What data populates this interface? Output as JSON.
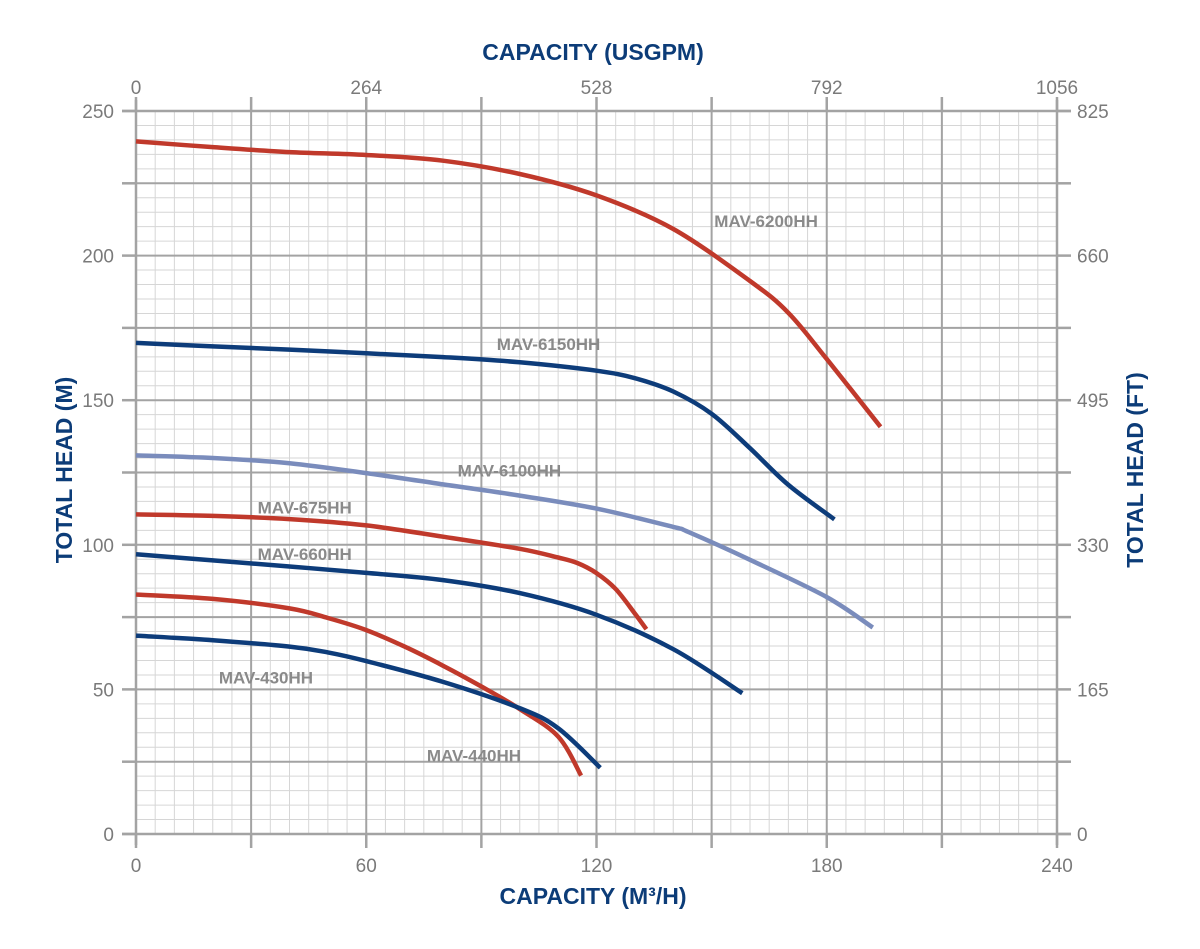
{
  "chart_data": {
    "type": "line",
    "title": "",
    "xlabel_bottom": "CAPACITY (M³/H)",
    "xlabel_top": "CAPACITY (USGPM)",
    "ylabel_left": "TOTAL HEAD (M)",
    "ylabel_right": "TOTAL HEAD (FT)",
    "xlim": [
      0,
      240
    ],
    "ylim": [
      0,
      250
    ],
    "x_ticks_bottom": [
      "0",
      "60",
      "120",
      "180",
      "240"
    ],
    "x_ticks_top": [
      "0",
      "264",
      "528",
      "792",
      "1056"
    ],
    "y_ticks_left": [
      "0",
      "50",
      "100",
      "150",
      "200",
      "250"
    ],
    "y_ticks_right": [
      "0",
      "165",
      "330",
      "495",
      "660",
      "825"
    ],
    "grid": true,
    "colors": {
      "red": "#c0392b",
      "dark_blue": "#0d3c7a",
      "light_blue": "#7a8cbc",
      "grid_minor": "#d6d6d6",
      "grid_major": "#a3a3a3",
      "text": "#7a7a7a",
      "title": "#0c3c78"
    },
    "series": [
      {
        "name": "MAV-6200HH",
        "color": "red",
        "x": [
          0,
          20,
          40,
          60,
          80,
          100,
          120,
          140,
          160,
          170,
          180,
          194
        ],
        "y": [
          239.5,
          237.5,
          235.8,
          234.8,
          232.8,
          228.2,
          220.8,
          209.2,
          191.2,
          180.2,
          164.2,
          140.8
        ]
      },
      {
        "name": "MAV-6150HH",
        "color": "dark_blue",
        "x": [
          0,
          20,
          40,
          60,
          80,
          100,
          120,
          130,
          140,
          150,
          160,
          170,
          182
        ],
        "y": [
          169.8,
          168.6,
          167.5,
          166.2,
          164.9,
          163.1,
          160.2,
          157.6,
          153.0,
          145.3,
          133.4,
          120.7,
          108.8
        ]
      },
      {
        "name": "MAV-6100HH",
        "color": "light_blue",
        "x": [
          0,
          20,
          40,
          60,
          80,
          100,
          120,
          140,
          144,
          160,
          180,
          192
        ],
        "y": [
          130.9,
          130.0,
          128.2,
          124.8,
          120.9,
          117.0,
          112.5,
          106.2,
          104.4,
          94.8,
          81.9,
          71.4
        ]
      },
      {
        "name": "MAV-675HH",
        "color": "red",
        "x": [
          0,
          20,
          40,
          60,
          80,
          100,
          110,
          115,
          120,
          125,
          130,
          133
        ],
        "y": [
          110.5,
          110.0,
          108.9,
          106.7,
          102.8,
          98.6,
          95.6,
          93.7,
          90.2,
          84.7,
          76.2,
          70.8
        ]
      },
      {
        "name": "MAV-660HH",
        "color": "dark_blue",
        "x": [
          0,
          20,
          40,
          60,
          80,
          100,
          120,
          140,
          158
        ],
        "y": [
          96.7,
          94.6,
          92.5,
          90.3,
          87.8,
          83.3,
          75.8,
          63.9,
          48.7
        ]
      },
      {
        "name": "MAV-440HH",
        "color": "red",
        "x": [
          0,
          20,
          40,
          50,
          60,
          70,
          80,
          90,
          100,
          110,
          116
        ],
        "y": [
          82.8,
          81.3,
          78.0,
          74.7,
          70.5,
          64.8,
          58.2,
          51.0,
          43.2,
          33.7,
          20.2
        ]
      },
      {
        "name": "MAV-430HH",
        "color": "dark_blue",
        "x": [
          0,
          20,
          40,
          50,
          60,
          80,
          100,
          110,
          121
        ],
        "y": [
          68.6,
          67.0,
          64.8,
          62.8,
          59.8,
          52.6,
          43.5,
          36.6,
          22.9
        ]
      }
    ],
    "annotations": [
      {
        "text": "MAV-6200HH",
        "x": 150.7,
        "y": 211.9
      },
      {
        "text": "MAV-6150HH",
        "x": 94.0,
        "y": 169.4
      },
      {
        "text": "MAV-6100HH",
        "x": 83.8,
        "y": 125.7
      },
      {
        "text": "MAV-675HH",
        "x": 31.7,
        "y": 112.9
      },
      {
        "text": "MAV-660HH",
        "x": 31.7,
        "y": 96.8
      },
      {
        "text": "MAV-430HH",
        "x": 21.6,
        "y": 54.1
      },
      {
        "text": "MAV-440HH",
        "x": 75.8,
        "y": 27.1
      }
    ]
  }
}
